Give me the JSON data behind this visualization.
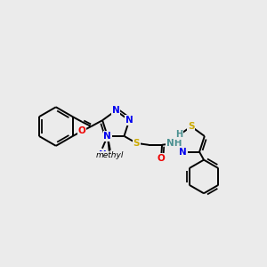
{
  "background_color": "#ebebeb",
  "atoms": {
    "C": "#000000",
    "N": "#0000ee",
    "O": "#ee0000",
    "S": "#ccaa00",
    "H": "#4a9090"
  },
  "bond_color": "#000000",
  "bond_lw": 1.4
}
